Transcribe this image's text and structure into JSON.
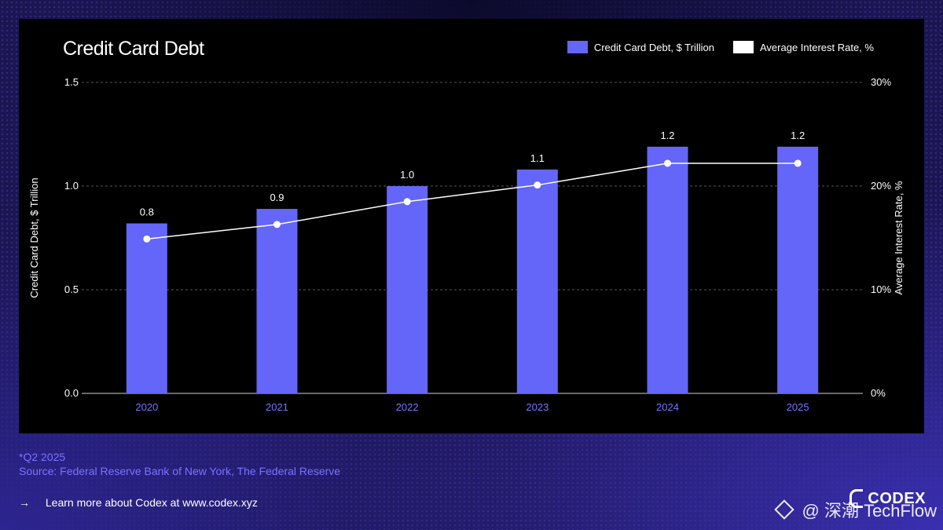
{
  "chart_data": {
    "type": "bar",
    "title": "Credit Card Debt",
    "categories": [
      "2020",
      "2021",
      "2022",
      "2023",
      "2024",
      "2025"
    ],
    "series": [
      {
        "name": "Credit Card Debt, $ Trillion",
        "type": "bar",
        "axis": "left",
        "values": [
          0.82,
          0.89,
          1.0,
          1.08,
          1.19,
          1.19
        ],
        "labels": [
          "0.8",
          "0.9",
          "1.0",
          "1.1",
          "1.2",
          "1.2"
        ],
        "color": "#6366f8"
      },
      {
        "name": "Average Interest Rate, %",
        "type": "line",
        "axis": "right",
        "values": [
          14.9,
          16.3,
          18.5,
          20.1,
          22.2,
          22.2
        ],
        "color": "#ffffff"
      }
    ],
    "ylabel": "Credit Card Debt, $ Trillion",
    "ylabel_right": "Average Interest Rate, %",
    "ylim": [
      0,
      1.5
    ],
    "ylim_right": [
      0,
      30
    ],
    "yticks": [
      "0.0",
      "0.5",
      "1.0",
      "1.5"
    ],
    "yticks_right": [
      "0%",
      "10%",
      "20%",
      "30%"
    ],
    "grid": "dashed horizontal",
    "legend_position": "top-right"
  },
  "footnote": {
    "note": "*Q2 2025",
    "source": "Source: Federal Reserve Bank of New York, The Federal Reserve"
  },
  "cta": {
    "arrow": "→",
    "text": "Learn more about Codex at www.codex.xyz"
  },
  "brand": {
    "name": "CODEX"
  },
  "watermark": {
    "text": "@ 深潮 TechFlow"
  },
  "colors": {
    "bar": "#6366f8",
    "axis_label": "#7a72ff",
    "line": "#ffffff"
  }
}
